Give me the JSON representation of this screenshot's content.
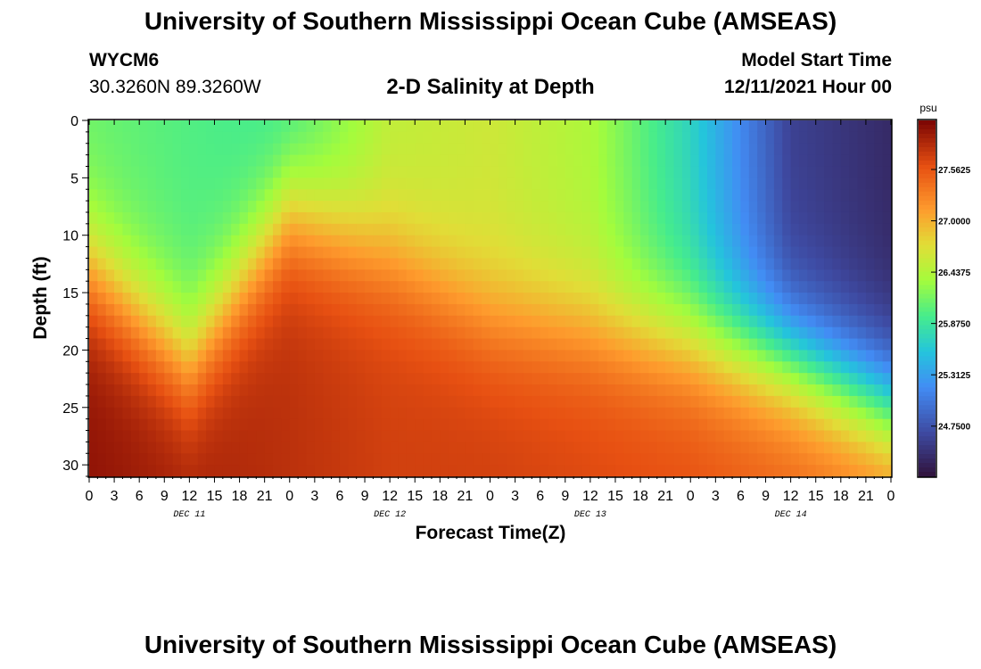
{
  "header": {
    "title": "University of Southern Mississippi Ocean Cube (AMSEAS)",
    "station": "WYCM6",
    "coords": "30.3260N  89.3260W",
    "subtitle": "2-D Salinity at Depth",
    "model_start_label": "Model Start Time",
    "model_start_value": "12/11/2021 Hour 00"
  },
  "footer": {
    "title": "University of Southern Mississippi Ocean Cube (AMSEAS)"
  },
  "chart_data": {
    "type": "heatmap",
    "title": "2-D Salinity at Depth",
    "xlabel": "Forecast Time(Z)",
    "ylabel": "Depth (ft)",
    "x_hours_range": [
      0,
      96
    ],
    "x_tick_step_hours": 3,
    "x_tick_labels": [
      "0",
      "3",
      "6",
      "9",
      "12",
      "15",
      "18",
      "21",
      "0",
      "3",
      "6",
      "9",
      "12",
      "15",
      "18",
      "21",
      "0",
      "3",
      "6",
      "9",
      "12",
      "15",
      "18",
      "21",
      "0",
      "3",
      "6",
      "9",
      "12",
      "15",
      "18",
      "21",
      "0"
    ],
    "x_day_labels": [
      "DEC 11",
      "DEC 12",
      "DEC 13",
      "DEC 14"
    ],
    "y_range": [
      0,
      31
    ],
    "y_ticks": [
      0,
      5,
      10,
      15,
      20,
      25,
      30
    ],
    "y_tick_labels": [
      "0",
      "5",
      "10",
      "15",
      "20",
      "25",
      "30"
    ],
    "colorbar": {
      "unit": "psu",
      "min": 24.2,
      "max": 28.1,
      "tick_values": [
        27.5625,
        27.0,
        26.4375,
        25.875,
        25.3125,
        24.75
      ],
      "tick_labels": [
        "27.5625",
        "27.0000",
        "26.4375",
        "25.8750",
        "25.3125",
        "24.7500"
      ]
    },
    "surface_salinity_psu_by_hour": [
      [
        0,
        26.1
      ],
      [
        12,
        26.0
      ],
      [
        24,
        25.9
      ],
      [
        36,
        26.5
      ],
      [
        48,
        26.6
      ],
      [
        60,
        26.4
      ],
      [
        72,
        25.7
      ],
      [
        84,
        24.6
      ],
      [
        96,
        24.4
      ]
    ],
    "bottom_salinity_psu_by_hour": [
      [
        0,
        28.0
      ],
      [
        12,
        27.9
      ],
      [
        24,
        27.8
      ],
      [
        36,
        27.7
      ],
      [
        48,
        27.7
      ],
      [
        60,
        27.65
      ],
      [
        72,
        27.6
      ],
      [
        84,
        27.5
      ],
      [
        96,
        27.4
      ]
    ],
    "halocline_depth_ft_by_hour": [
      [
        0,
        13
      ],
      [
        12,
        21
      ],
      [
        24,
        8
      ],
      [
        36,
        12
      ],
      [
        48,
        17
      ],
      [
        60,
        18
      ],
      [
        72,
        19
      ],
      [
        84,
        21
      ],
      [
        96,
        25
      ]
    ]
  }
}
